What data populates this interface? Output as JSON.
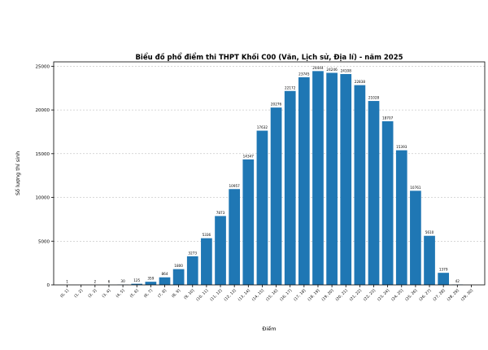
{
  "chart_data": {
    "type": "bar",
    "title": "Biểu đồ phổ điểm thi THPT Khối C00 (Văn, Lịch sử, Địa lí) - năm 2025",
    "xlabel": "Điểm",
    "ylabel": "Số lượng thí sinh",
    "ylim": [
      0,
      25500
    ],
    "yticks": [
      0,
      5000,
      10000,
      15000,
      20000,
      25000
    ],
    "grid": "y",
    "bar_color": "#1f77b4",
    "categories": [
      "(0, 1]",
      "(1, 2]",
      "(2, 3]",
      "(3, 4]",
      "(4, 5]",
      "(5, 6]",
      "(6, 7]",
      "(7, 8]",
      "(8, 9]",
      "(9, 10]",
      "(10, 11]",
      "(11, 12]",
      "(12, 13]",
      "(13, 14]",
      "(14, 15]",
      "(15, 16]",
      "(16, 17]",
      "(17, 18]",
      "(18, 19]",
      "(19, 20]",
      "(20, 21]",
      "(21, 22]",
      "(22, 23]",
      "(23, 24]",
      "(24, 25]",
      "(25, 26]",
      "(26, 27]",
      "(27, 28]",
      "(28, 29]",
      "(29, 30]"
    ],
    "values": [
      1,
      1,
      2,
      6,
      30,
      125,
      359,
      864,
      1800,
      3273,
      5336,
      7873,
      10957,
      14347,
      17632,
      20276,
      22172,
      23745,
      24444,
      24246,
      24108,
      22838,
      21028,
      18707,
      15393,
      10761,
      5610,
      1379,
      42,
      0
    ],
    "data_labels": [
      "1",
      "",
      "2",
      "6",
      "30",
      "125",
      "359",
      "864",
      "1800",
      "3273",
      "5336",
      "7873",
      "10957",
      "14347",
      "17632",
      "20276",
      "22172",
      "23745",
      "24444",
      "24246",
      "24108",
      "22838",
      "21028",
      "18707",
      "15393",
      "10761",
      "5610",
      "1379",
      "42",
      ""
    ]
  }
}
